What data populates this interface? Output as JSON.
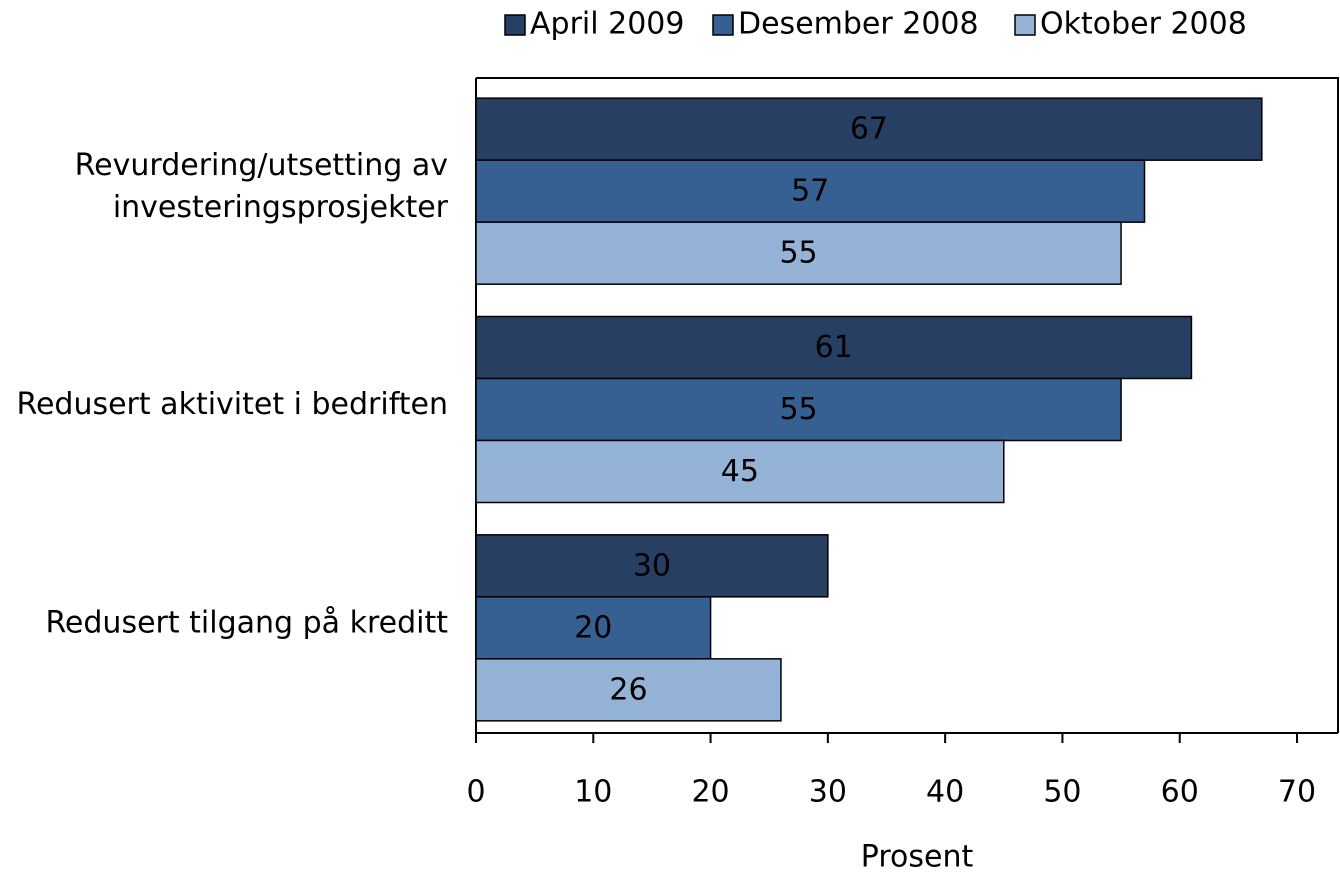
{
  "chart_data": {
    "type": "bar",
    "orientation": "horizontal",
    "categories": [
      "Revurdering/utsetting av\ninvesteringsprosjekter",
      "Redusert aktivitet i bedriften",
      "Redusert tilgang på kreditt"
    ],
    "series": [
      {
        "name": "April 2009",
        "color": "#263f63",
        "values": [
          67,
          61,
          30
        ]
      },
      {
        "name": "Desember 2008",
        "color": "#366092",
        "values": [
          57,
          55,
          20
        ]
      },
      {
        "name": "Oktober 2008",
        "color": "#95b3d7",
        "values": [
          55,
          45,
          26
        ]
      }
    ],
    "xlabel": "Prosent",
    "xlim": [
      0,
      70
    ],
    "xticks": [
      0,
      10,
      20,
      30,
      40,
      50,
      60,
      70
    ],
    "legend": "top"
  }
}
